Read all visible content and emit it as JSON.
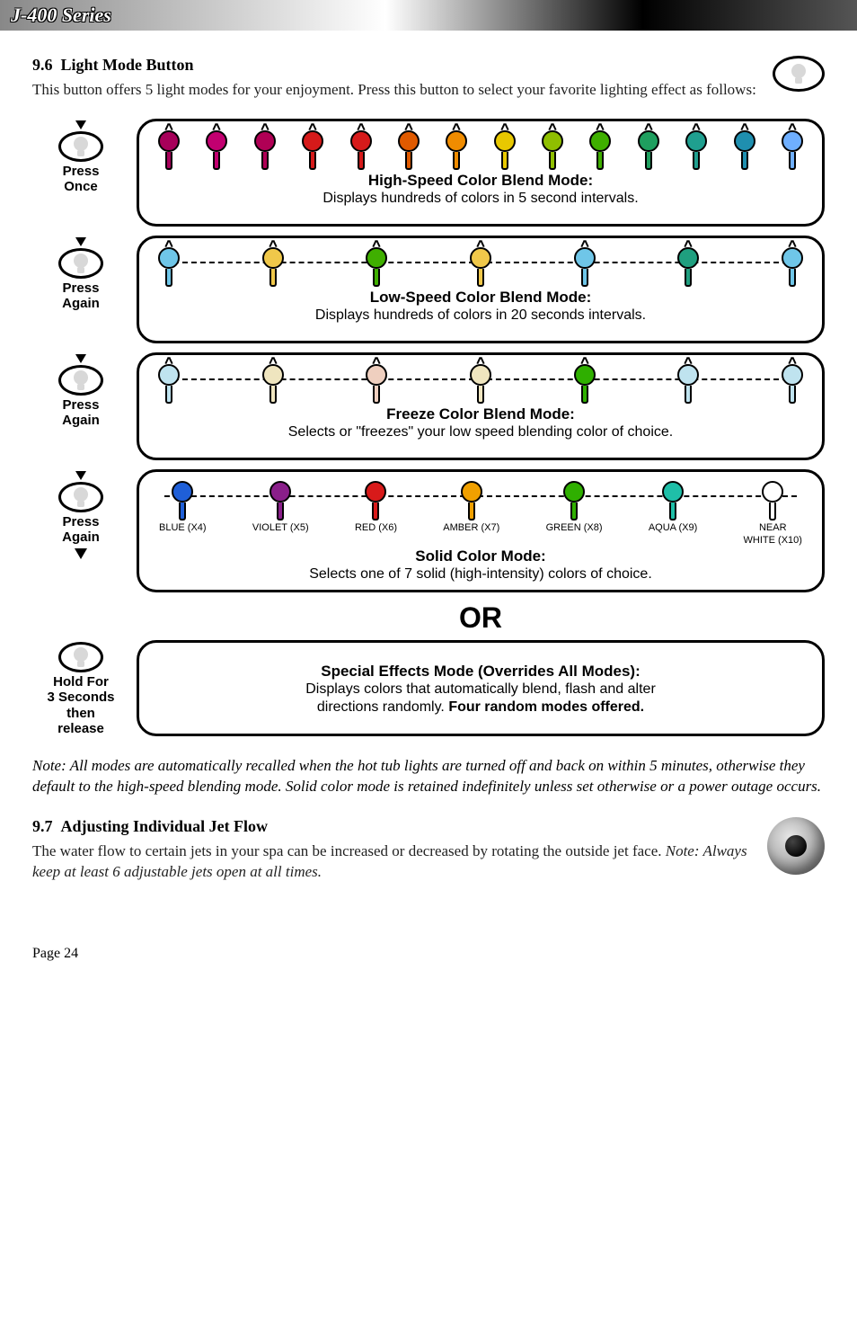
{
  "header": {
    "series": "J-400 Series"
  },
  "section_light": {
    "number": "9.6",
    "title": "Light Mode Button",
    "intro": "This button offers 5 light modes for your enjoyment. Press this button to select your favorite lighting effect as follows:"
  },
  "diagram": {
    "steps": [
      {
        "action": "Press\nOnce"
      },
      {
        "action": "Press\nAgain"
      },
      {
        "action": "Press\nAgain"
      },
      {
        "action": "Press\nAgain"
      },
      {
        "action": "Hold For\n3 Seconds\nthen\nrelease"
      }
    ],
    "modes": {
      "high_speed": {
        "title": "High-Speed Color Blend Mode:",
        "desc": "Displays hundreds of colors in 5 second intervals.",
        "colors": [
          "#a7005a",
          "#c20070",
          "#b00055",
          "#d61a1a",
          "#d61a1a",
          "#e05a00",
          "#f08c00",
          "#e8c800",
          "#8fbf00",
          "#3faf00",
          "#1f9f5f",
          "#1f9f8f",
          "#1f8faf",
          "#6fafff"
        ]
      },
      "low_speed": {
        "title": "Low-Speed Color Blend Mode:",
        "desc": "Displays hundreds of colors in 20 seconds intervals.",
        "colors": [
          "#6fc6e8",
          "#f0c84a",
          "#3faf00",
          "#f0c84a",
          "#6fc6e8",
          "#1f9f7f",
          "#6fc6e8"
        ]
      },
      "freeze": {
        "title": "Freeze Color Blend Mode:",
        "desc": "Selects or \"freezes\" your low speed blending color of choice.",
        "colors": [
          "#bfe3ef",
          "#efe5bf",
          "#efcfbf",
          "#efe5bf",
          "#2faf00",
          "#bfe3ef",
          "#bfe3ef"
        ]
      },
      "solid": {
        "title": "Solid Color Mode:",
        "desc": "Selects one of 7 solid (high-intensity) colors of choice.",
        "items": [
          {
            "label": "BLUE (X4)",
            "color": "#1f5fd8"
          },
          {
            "label": "VIOLET (X5)",
            "color": "#8a1f8a"
          },
          {
            "label": "RED (X6)",
            "color": "#d81a1a"
          },
          {
            "label": "AMBER (X7)",
            "color": "#f0a000"
          },
          {
            "label": "GREEN (X8)",
            "color": "#2faf00"
          },
          {
            "label": "AQUA (X9)",
            "color": "#1fbfa8"
          },
          {
            "label": "NEAR",
            "color": "#ffffff",
            "label2": "WHITE (X10)"
          }
        ]
      },
      "or_label": "OR",
      "special": {
        "title": "Special Effects Mode (Overrides All Modes):",
        "desc_line1": "Displays colors that automatically blend, flash and alter",
        "desc_line2_a": "directions randomly.  ",
        "desc_line2_b": "Four random modes offered."
      }
    }
  },
  "note": "Note: All modes are automatically recalled when the hot tub lights are turned off and back on within 5 minutes, otherwise they default to the high-speed blending mode. Solid color mode is retained indefinitely unless set otherwise or a power outage occurs.",
  "section_jet": {
    "number": "9.7",
    "title": "Adjusting Individual Jet Flow",
    "body_a": "The water flow to certain jets in your spa  can be increased or decreased by rotating the outside jet face. ",
    "body_note": "Note: Always keep at least 6 adjustable jets open at all times."
  },
  "page": "Page 24"
}
